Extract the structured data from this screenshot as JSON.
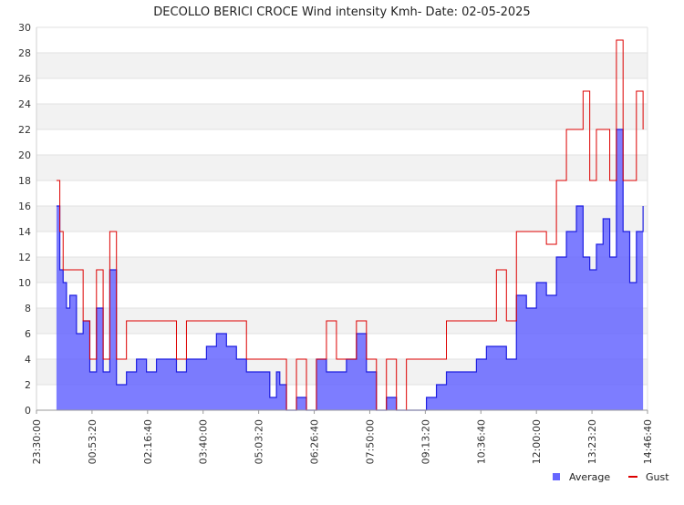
{
  "chart_data": {
    "type": "area",
    "title": "DECOLLO BERICI CROCE Wind intensity Kmh- Date: 02-05-2025",
    "xlabel": "",
    "ylabel": "",
    "xlim": [
      "23:30:00",
      "14:46:40"
    ],
    "ylim": [
      0,
      30
    ],
    "y_ticks": [
      0,
      2,
      4,
      6,
      8,
      10,
      12,
      14,
      16,
      18,
      20,
      22,
      24,
      26,
      28,
      30
    ],
    "x_ticks": [
      "23:30:00",
      "00:53:20",
      "02:16:40",
      "03:40:00",
      "05:03:20",
      "06:26:40",
      "07:50:00",
      "09:13:20",
      "10:36:40",
      "12:00:00",
      "13:23:20",
      "14:46:40"
    ],
    "grid": "horizontal alternating bands",
    "legend_position": "bottom-right",
    "series": [
      {
        "name": "Average",
        "color": "#6666ff",
        "style": "area",
        "x": [
          "00:00",
          "00:05",
          "00:10",
          "00:15",
          "00:20",
          "00:30",
          "00:40",
          "00:50",
          "01:00",
          "01:10",
          "01:20",
          "01:30",
          "01:45",
          "02:00",
          "02:15",
          "02:30",
          "02:45",
          "03:00",
          "03:15",
          "03:30",
          "03:45",
          "04:00",
          "04:15",
          "04:30",
          "04:45",
          "05:00",
          "05:10",
          "05:20",
          "05:30",
          "05:35",
          "05:45",
          "06:00",
          "06:15",
          "06:30",
          "06:45",
          "07:00",
          "07:15",
          "07:30",
          "07:45",
          "08:00",
          "08:15",
          "08:30",
          "08:45",
          "09:00",
          "09:15",
          "09:30",
          "09:45",
          "10:00",
          "10:15",
          "10:30",
          "10:45",
          "11:00",
          "11:15",
          "11:30",
          "11:45",
          "12:00",
          "12:15",
          "12:30",
          "12:45",
          "13:00",
          "13:10",
          "13:20",
          "13:30",
          "13:40",
          "13:50",
          "14:00",
          "14:10",
          "14:20",
          "14:30",
          "14:40"
        ],
        "values": [
          16,
          11,
          10,
          8,
          9,
          6,
          7,
          3,
          8,
          3,
          11,
          2,
          3,
          4,
          3,
          4,
          4,
          3,
          4,
          4,
          5,
          6,
          5,
          4,
          3,
          3,
          3,
          1,
          3,
          2,
          0,
          1,
          0,
          4,
          3,
          3,
          4,
          6,
          3,
          0,
          1,
          0,
          0,
          0,
          1,
          2,
          3,
          3,
          3,
          4,
          5,
          5,
          4,
          9,
          8,
          10,
          9,
          12,
          14,
          16,
          12,
          11,
          13,
          15,
          12,
          22,
          14,
          10,
          14,
          16
        ]
      },
      {
        "name": "Gust",
        "color": "#dd0000",
        "style": "line",
        "x": [
          "00:00",
          "00:05",
          "00:10",
          "00:15",
          "00:20",
          "00:30",
          "00:40",
          "00:50",
          "01:00",
          "01:10",
          "01:20",
          "01:30",
          "01:45",
          "02:00",
          "02:15",
          "02:30",
          "02:45",
          "03:00",
          "03:15",
          "03:30",
          "03:45",
          "04:00",
          "04:15",
          "04:30",
          "04:45",
          "05:00",
          "05:10",
          "05:20",
          "05:30",
          "05:35",
          "05:45",
          "06:00",
          "06:15",
          "06:30",
          "06:45",
          "07:00",
          "07:15",
          "07:30",
          "07:45",
          "08:00",
          "08:15",
          "08:30",
          "08:45",
          "09:00",
          "09:15",
          "09:30",
          "09:45",
          "10:00",
          "10:15",
          "10:30",
          "10:45",
          "11:00",
          "11:15",
          "11:30",
          "11:45",
          "12:00",
          "12:15",
          "12:30",
          "12:45",
          "13:00",
          "13:10",
          "13:20",
          "13:30",
          "13:40",
          "13:50",
          "14:00",
          "14:10",
          "14:20",
          "14:30",
          "14:40"
        ],
        "values": [
          18,
          14,
          11,
          11,
          11,
          11,
          7,
          4,
          11,
          4,
          14,
          4,
          7,
          7,
          7,
          7,
          7,
          4,
          7,
          7,
          7,
          7,
          7,
          7,
          4,
          4,
          4,
          4,
          4,
          4,
          0,
          4,
          0,
          4,
          7,
          4,
          4,
          7,
          4,
          0,
          4,
          0,
          4,
          4,
          4,
          4,
          7,
          7,
          7,
          7,
          7,
          11,
          7,
          14,
          14,
          14,
          13,
          18,
          22,
          22,
          25,
          18,
          22,
          22,
          18,
          29,
          18,
          18,
          25,
          22
        ]
      }
    ]
  }
}
